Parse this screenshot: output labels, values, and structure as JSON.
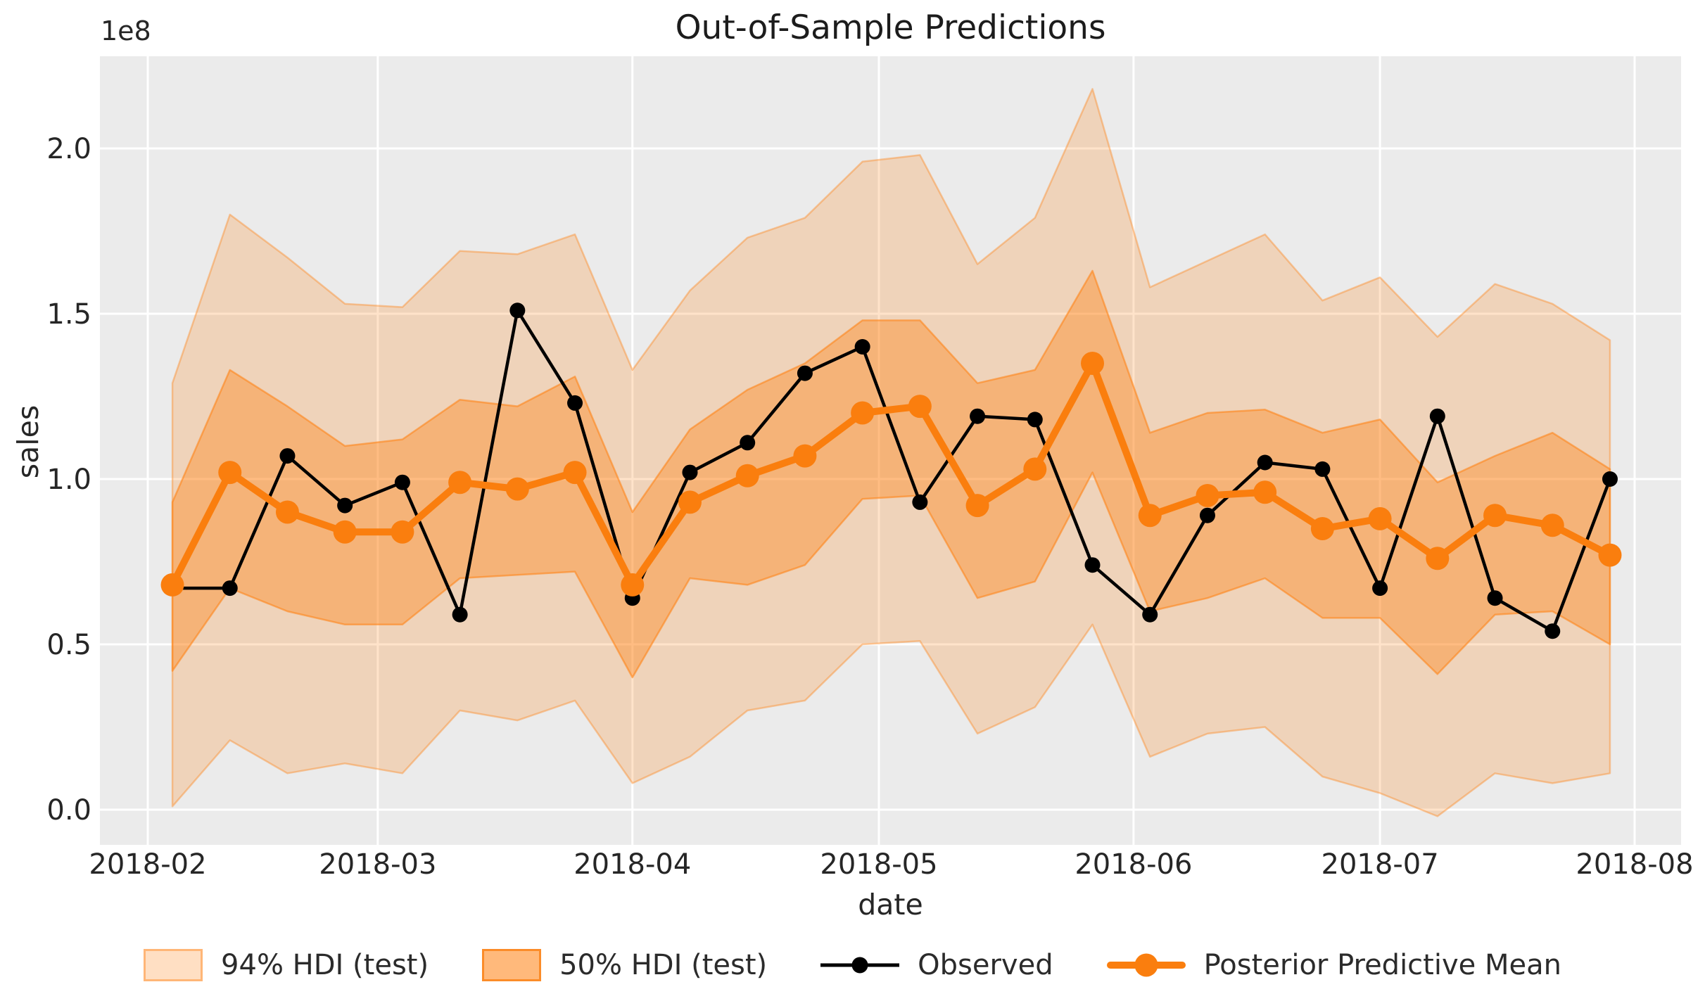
{
  "title": "Out-of-Sample Predictions",
  "y_offset_label": "1e8",
  "xlabel": "date",
  "ylabel": "sales",
  "legend": {
    "hdi94": "94% HDI (test)",
    "hdi50": "50% HDI (test)",
    "observed": "Observed",
    "posterior": "Posterior Predictive Mean"
  },
  "colors": {
    "figure_bg": "#ffffff",
    "plot_bg": "#ebebeb",
    "grid": "#ffffff",
    "hdi_base": "#ff7f0e",
    "observed_line": "#000000",
    "posterior_line": "#fa7e0e",
    "text": "#262626"
  },
  "chart_data": {
    "type": "line",
    "title": "Out-of-Sample Predictions",
    "xlabel": "date",
    "ylabel": "sales",
    "y_scale_factor": "1e8",
    "grid": true,
    "legend_position": "bottom",
    "ylim_1e8": [
      -0.1,
      2.3
    ],
    "x": [
      "2018-02-04",
      "2018-02-11",
      "2018-02-18",
      "2018-02-25",
      "2018-03-04",
      "2018-03-11",
      "2018-03-18",
      "2018-03-25",
      "2018-04-01",
      "2018-04-08",
      "2018-04-15",
      "2018-04-22",
      "2018-04-29",
      "2018-05-06",
      "2018-05-13",
      "2018-05-20",
      "2018-05-27",
      "2018-06-03",
      "2018-06-10",
      "2018-06-17",
      "2018-06-24",
      "2018-07-01",
      "2018-07-08",
      "2018-07-15",
      "2018-07-22",
      "2018-07-29"
    ],
    "x_day_offsets": [
      3,
      10,
      17,
      24,
      31,
      38,
      45,
      52,
      59,
      66,
      73,
      80,
      87,
      94,
      101,
      108,
      115,
      122,
      129,
      136,
      143,
      150,
      157,
      164,
      171,
      178
    ],
    "series": [
      {
        "name": "Observed",
        "color": "#000000",
        "values_1e8": [
          0.67,
          0.67,
          1.07,
          0.92,
          0.99,
          0.59,
          1.51,
          1.23,
          0.64,
          1.02,
          1.11,
          1.32,
          1.4,
          0.93,
          1.19,
          1.18,
          0.74,
          0.59,
          0.89,
          1.05,
          1.03,
          0.67,
          1.19,
          0.64,
          0.54,
          1.0
        ]
      },
      {
        "name": "Posterior Predictive Mean",
        "color": "#fa7e0e",
        "values_1e8": [
          0.68,
          1.02,
          0.9,
          0.84,
          0.84,
          0.99,
          0.97,
          1.02,
          0.68,
          0.93,
          1.01,
          1.07,
          1.2,
          1.22,
          0.92,
          1.03,
          1.35,
          0.89,
          0.95,
          0.96,
          0.85,
          0.88,
          0.76,
          0.89,
          0.86,
          0.77
        ]
      }
    ],
    "bands": [
      {
        "name": "94% HDI (test)",
        "fill_opacity": 0.22,
        "edge_opacity": 0.38,
        "low_1e8": [
          0.01,
          0.21,
          0.11,
          0.14,
          0.11,
          0.3,
          0.27,
          0.33,
          0.08,
          0.16,
          0.3,
          0.33,
          0.5,
          0.51,
          0.23,
          0.31,
          0.56,
          0.16,
          0.23,
          0.25,
          0.1,
          0.05,
          -0.02,
          0.11,
          0.08,
          0.11
        ],
        "high_1e8": [
          1.29,
          1.8,
          1.67,
          1.53,
          1.52,
          1.69,
          1.68,
          1.74,
          1.33,
          1.57,
          1.73,
          1.79,
          1.96,
          1.98,
          1.65,
          1.79,
          2.18,
          1.58,
          1.66,
          1.74,
          1.54,
          1.61,
          1.43,
          1.59,
          1.53,
          1.42
        ]
      },
      {
        "name": "50% HDI (test)",
        "fill_opacity": 0.38,
        "edge_opacity": 0.55,
        "low_1e8": [
          0.42,
          0.67,
          0.6,
          0.56,
          0.56,
          0.7,
          0.71,
          0.72,
          0.4,
          0.7,
          0.68,
          0.74,
          0.94,
          0.95,
          0.64,
          0.69,
          1.02,
          0.6,
          0.64,
          0.7,
          0.58,
          0.58,
          0.41,
          0.59,
          0.6,
          0.5
        ],
        "high_1e8": [
          0.93,
          1.33,
          1.22,
          1.1,
          1.12,
          1.24,
          1.22,
          1.31,
          0.9,
          1.15,
          1.27,
          1.35,
          1.48,
          1.48,
          1.29,
          1.33,
          1.63,
          1.14,
          1.2,
          1.21,
          1.14,
          1.18,
          0.99,
          1.07,
          1.14,
          1.03
        ]
      }
    ],
    "x_ticks": [
      {
        "label": "2018-02",
        "day_offset": 0
      },
      {
        "label": "2018-03",
        "day_offset": 28
      },
      {
        "label": "2018-04",
        "day_offset": 59
      },
      {
        "label": "2018-05",
        "day_offset": 89
      },
      {
        "label": "2018-06",
        "day_offset": 120
      },
      {
        "label": "2018-07",
        "day_offset": 150
      },
      {
        "label": "2018-08",
        "day_offset": 181
      }
    ],
    "y_ticks": [
      {
        "label": "0.0",
        "value_1e8": 0.0
      },
      {
        "label": "0.5",
        "value_1e8": 0.5
      },
      {
        "label": "1.0",
        "value_1e8": 1.0
      },
      {
        "label": "1.5",
        "value_1e8": 1.5
      },
      {
        "label": "2.0",
        "value_1e8": 2.0
      }
    ]
  }
}
